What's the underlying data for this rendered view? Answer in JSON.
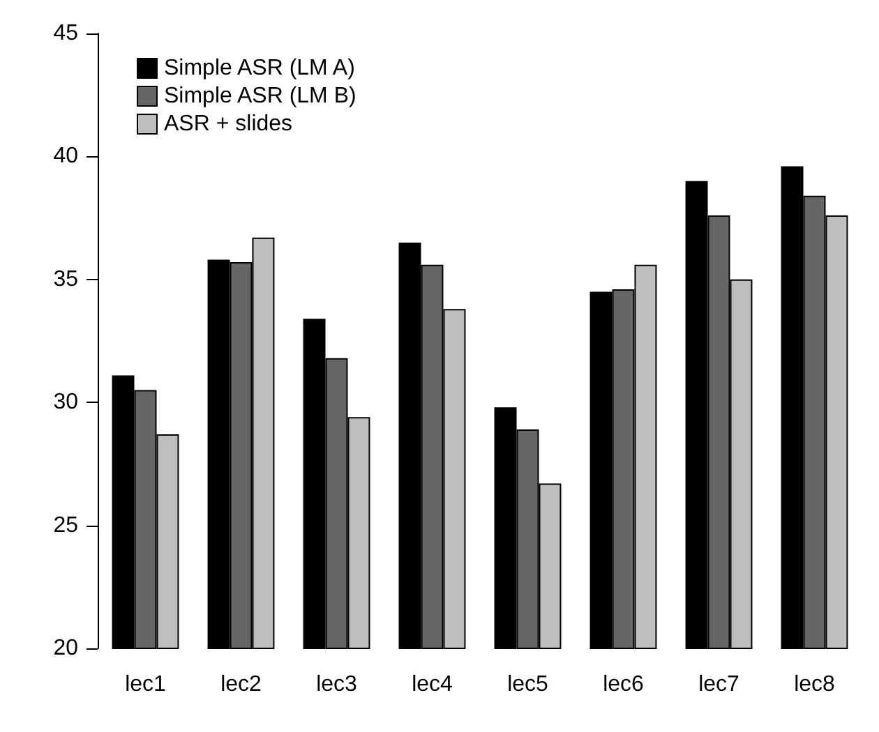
{
  "chart_data": {
    "type": "bar",
    "categories": [
      "lec1",
      "lec2",
      "lec3",
      "lec4",
      "lec5",
      "lec6",
      "lec7",
      "lec8"
    ],
    "series": [
      {
        "name": "Simple ASR (LM A)",
        "color": "#000000",
        "values": [
          31.1,
          35.8,
          33.4,
          36.5,
          29.8,
          34.5,
          39.0,
          39.6
        ]
      },
      {
        "name": "Simple ASR (LM B)",
        "color": "#666666",
        "values": [
          30.5,
          35.7,
          31.8,
          35.6,
          28.9,
          34.6,
          37.6,
          38.4
        ]
      },
      {
        "name": "ASR + slides",
        "color": "#bebebe",
        "values": [
          28.7,
          36.7,
          29.4,
          33.8,
          26.7,
          35.6,
          35.0,
          37.6
        ]
      }
    ],
    "ylim": [
      20,
      45
    ],
    "yticks": [
      20,
      25,
      30,
      35,
      40,
      45
    ],
    "grid": false,
    "legend": "top left"
  }
}
